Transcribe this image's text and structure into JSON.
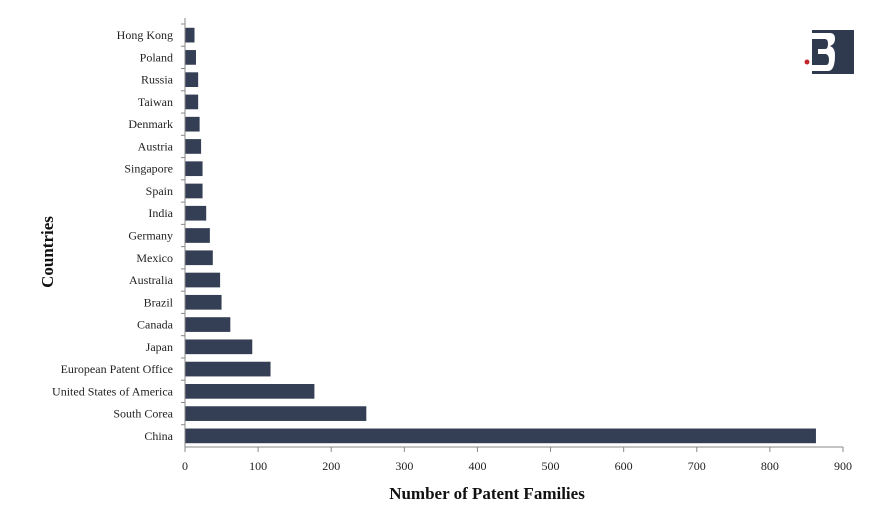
{
  "chart_data": {
    "type": "bar",
    "orientation": "horizontal",
    "categories": [
      "Hong Kong",
      "Poland",
      "Russia",
      "Taiwan",
      "Denmark",
      "Austria",
      "Singapore",
      "Spain",
      "India",
      "Germany",
      "Mexico",
      "Australia",
      "Brazil",
      "Canada",
      "Japan",
      "European Patent Office",
      "United States of America",
      "South Corea",
      "China"
    ],
    "values": [
      13,
      15,
      18,
      18,
      20,
      22,
      24,
      24,
      29,
      34,
      38,
      48,
      50,
      62,
      92,
      117,
      177,
      248,
      863
    ],
    "xlabel": "Number of Patent Families",
    "ylabel": "Countries",
    "xlim": [
      0,
      900
    ],
    "xticks": [
      0,
      100,
      200,
      300,
      400,
      500,
      600,
      700,
      800,
      900
    ],
    "grid": false,
    "bar_color": "#343e54"
  },
  "logo": {
    "icon": "brand-logo-icon",
    "color": "#2f3a4f",
    "accent": "#c0282d"
  }
}
